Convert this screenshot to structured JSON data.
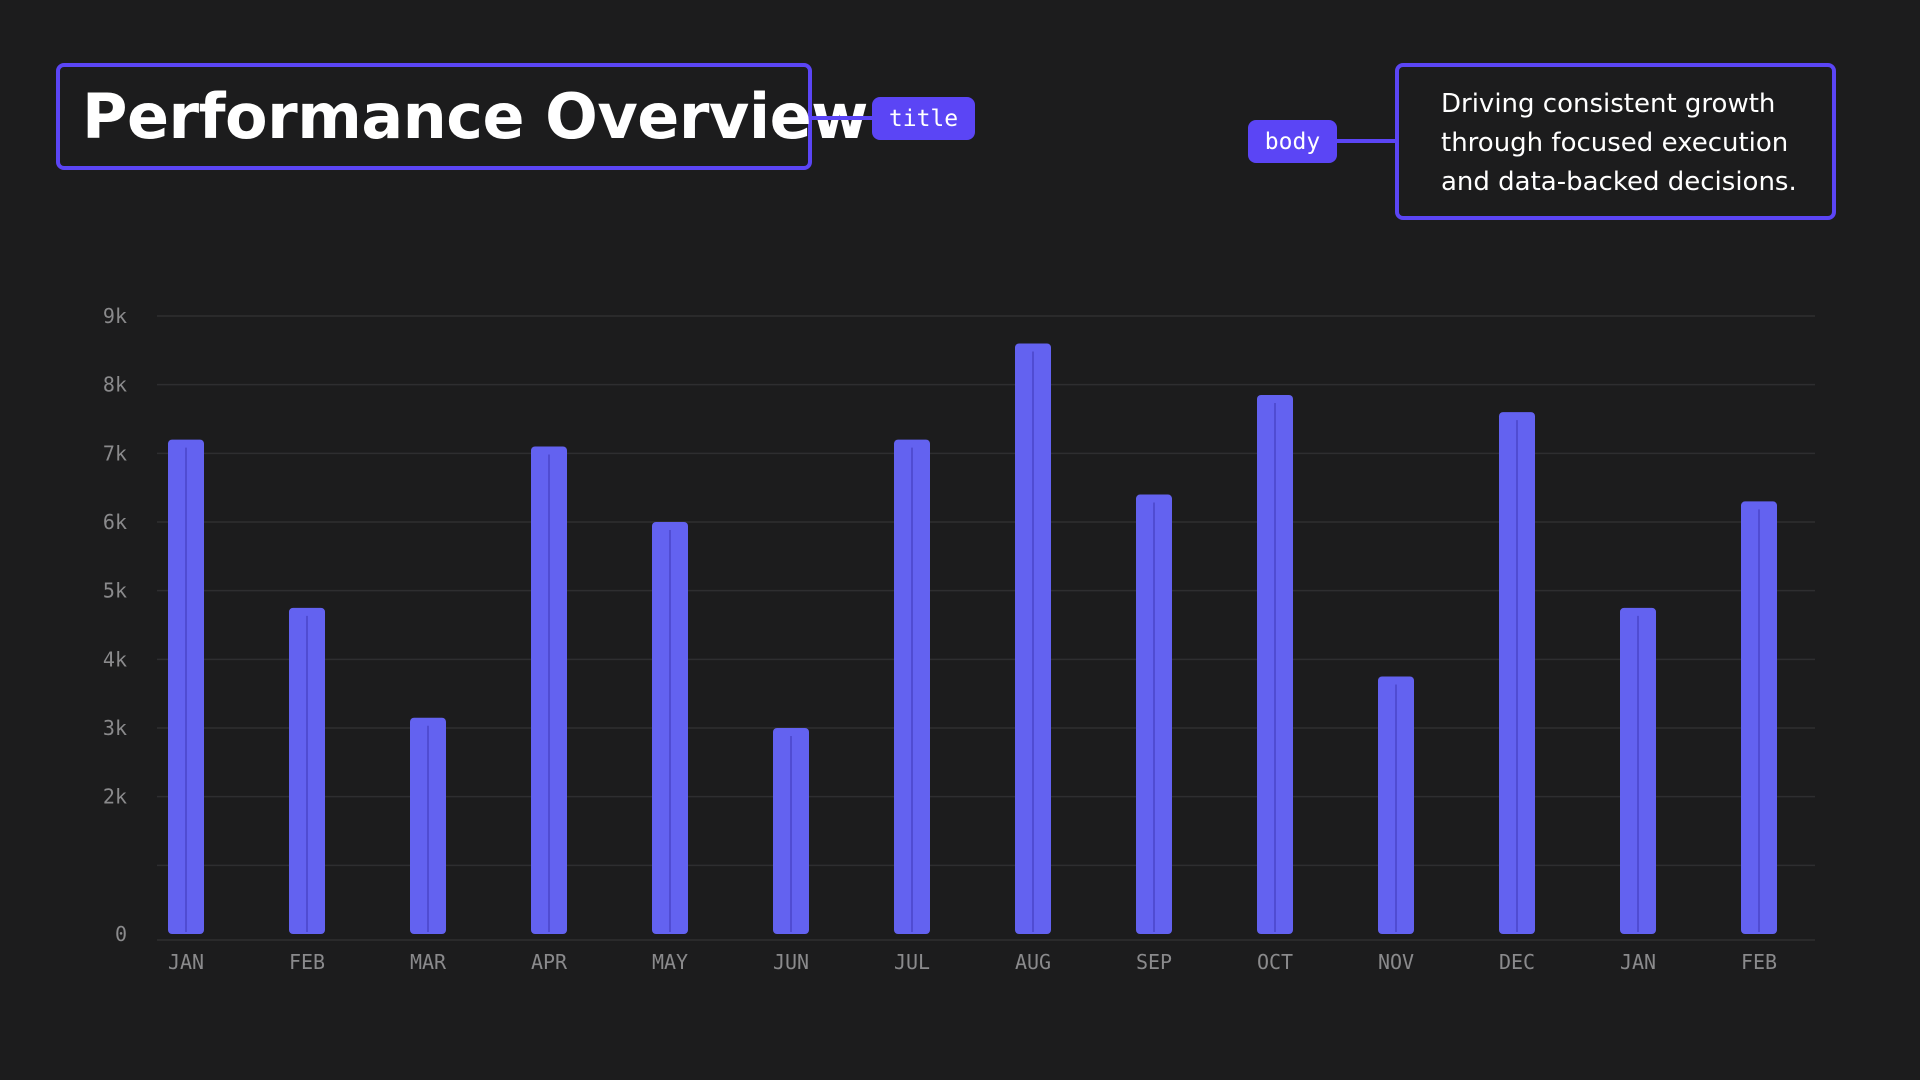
{
  "title_tag": "title",
  "body_tag": "body",
  "title": "Performance Overview",
  "body": "Driving consistent growth through focused execution and data-backed decisions.",
  "colors": {
    "background": "#1c1c1d",
    "accent": "#5b45f5",
    "bar": "#6362f0",
    "bar_center_line": "#4a44c8",
    "grid": "#2e2e30",
    "axis_text": "#8a8a8c"
  },
  "chart_data": {
    "type": "bar",
    "categories": [
      "JAN",
      "FEB",
      "MAR",
      "APR",
      "MAY",
      "JUN",
      "JUL",
      "AUG",
      "SEP",
      "OCT",
      "NOV",
      "DEC",
      "JAN",
      "FEB"
    ],
    "values": [
      7200,
      4750,
      3150,
      7100,
      6000,
      3000,
      7200,
      8600,
      6400,
      7850,
      3750,
      7600,
      4750,
      6300
    ],
    "ylim": [
      0,
      9000
    ],
    "yticks": [
      0,
      1000,
      2000,
      3000,
      4000,
      5000,
      6000,
      7000,
      8000,
      9000
    ],
    "ytick_labels": [
      "0",
      "",
      "2k",
      "3k",
      "4k",
      "5k",
      "6k",
      "7k",
      "8k",
      "9k"
    ],
    "grid": true,
    "title": "",
    "xlabel": "",
    "ylabel": ""
  }
}
